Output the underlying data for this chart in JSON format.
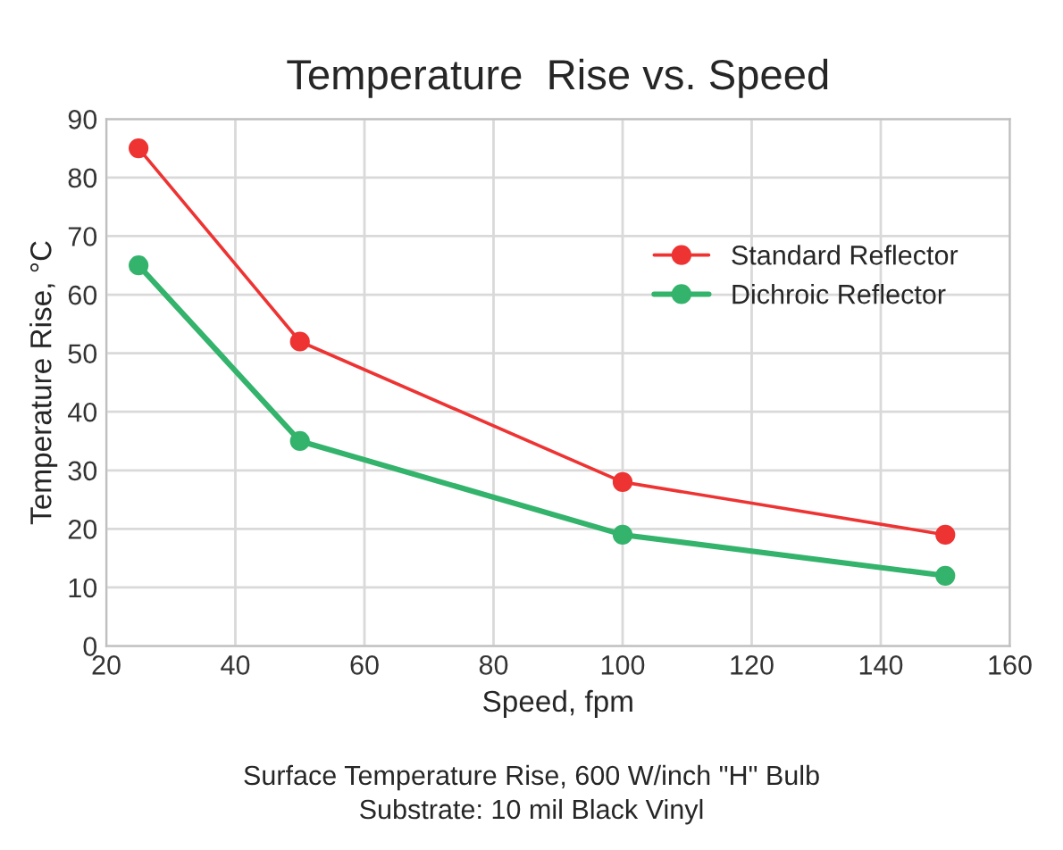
{
  "chart_data": {
    "type": "line",
    "title": "Temperature  Rise vs. Speed",
    "xlabel": "Speed, fpm",
    "ylabel": "Temperature Rise, °C",
    "x": [
      25,
      50,
      100,
      150
    ],
    "series": [
      {
        "name": "Standard Reflector",
        "color": "#ee3333",
        "values": [
          85,
          52,
          28,
          19
        ]
      },
      {
        "name": "Dichroic Reflector",
        "color": "#33b36b",
        "values": [
          65,
          35,
          19,
          12
        ]
      }
    ],
    "xlim": [
      20,
      160
    ],
    "xticks": [
      20,
      40,
      60,
      80,
      100,
      120,
      140,
      160
    ],
    "ylim": [
      0,
      90
    ],
    "yticks": [
      0,
      10,
      20,
      30,
      40,
      50,
      60,
      70,
      80,
      90
    ],
    "grid": true,
    "legend": "right",
    "marker": "circle",
    "line_style": "solid",
    "annotations": [
      "Surface Temperature Rise, 600 W/inch \"H\" Bulb",
      "Substrate: 10 mil Black Vinyl"
    ]
  }
}
